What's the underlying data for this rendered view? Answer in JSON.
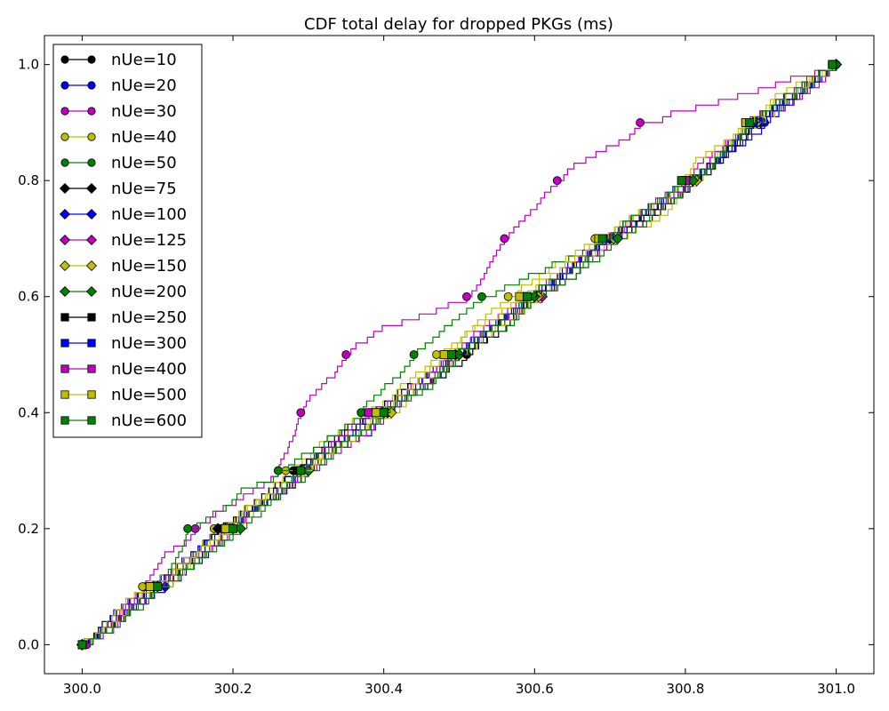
{
  "chart_data": {
    "type": "line",
    "title": "CDF total delay for dropped PKGs (ms)",
    "xlabel": "",
    "ylabel": "",
    "xlim": [
      299.95,
      301.05
    ],
    "ylim": [
      -0.05,
      1.05
    ],
    "xticks": [
      300.0,
      300.2,
      300.4,
      300.6,
      300.8,
      301.0
    ],
    "xtick_labels": [
      "300.0",
      "300.2",
      "300.4",
      "300.6",
      "300.8",
      "301.0"
    ],
    "yticks": [
      0.0,
      0.2,
      0.4,
      0.6,
      0.8,
      1.0
    ],
    "ytick_labels": [
      "0.0",
      "0.2",
      "0.4",
      "0.6",
      "0.8",
      "1.0"
    ],
    "grid": false,
    "legend_position": "top-left",
    "y_levels": [
      0.0,
      0.1,
      0.2,
      0.3,
      0.4,
      0.5,
      0.6,
      0.7,
      0.8,
      0.9,
      1.0
    ],
    "series": [
      {
        "name": "nUe=10",
        "color": "#000000",
        "marker": "circle",
        "x": [
          300.0,
          300.082,
          300.181,
          300.28,
          300.38,
          300.51,
          300.6,
          300.69,
          300.81,
          300.89,
          301.0
        ]
      },
      {
        "name": "nUe=20",
        "color": "#0000ff",
        "marker": "circle",
        "x": [
          300.0,
          300.085,
          300.185,
          300.285,
          300.385,
          300.495,
          300.59,
          300.7,
          300.81,
          300.905,
          301.0
        ]
      },
      {
        "name": "nUe=30",
        "color": "#bf00bf",
        "marker": "circle",
        "x": [
          300.006,
          300.08,
          300.15,
          300.26,
          300.29,
          300.35,
          300.51,
          300.56,
          300.63,
          300.74,
          300.995
        ]
      },
      {
        "name": "nUe=40",
        "color": "#bfbf00",
        "marker": "circle",
        "x": [
          300.0,
          300.08,
          300.175,
          300.27,
          300.37,
          300.47,
          300.565,
          300.68,
          300.8,
          300.88,
          300.995
        ]
      },
      {
        "name": "nUe=50",
        "color": "#008000",
        "marker": "circle",
        "x": [
          300.0,
          300.1,
          300.14,
          300.26,
          300.37,
          300.44,
          300.53,
          300.7,
          300.805,
          300.89,
          301.0
        ]
      },
      {
        "name": "nUe=75",
        "color": "#000000",
        "marker": "diamond",
        "x": [
          300.0,
          300.095,
          300.18,
          300.3,
          300.39,
          300.5,
          300.6,
          300.7,
          300.81,
          300.89,
          301.0
        ]
      },
      {
        "name": "nUe=100",
        "color": "#0000ff",
        "marker": "diamond",
        "x": [
          300.0,
          300.11,
          300.19,
          300.29,
          300.4,
          300.495,
          300.6,
          300.7,
          300.81,
          300.9,
          301.0
        ]
      },
      {
        "name": "nUe=125",
        "color": "#bf00bf",
        "marker": "diamond",
        "x": [
          300.0,
          300.1,
          300.2,
          300.3,
          300.405,
          300.495,
          300.61,
          300.705,
          300.81,
          300.895,
          301.0
        ]
      },
      {
        "name": "nUe=150",
        "color": "#bfbf00",
        "marker": "diamond",
        "x": [
          300.0,
          300.1,
          300.2,
          300.3,
          300.41,
          300.5,
          300.605,
          300.705,
          300.815,
          300.895,
          301.0
        ]
      },
      {
        "name": "nUe=200",
        "color": "#008000",
        "marker": "diamond",
        "x": [
          300.0,
          300.1,
          300.21,
          300.3,
          300.4,
          300.5,
          300.6,
          300.71,
          300.81,
          300.89,
          301.0
        ]
      },
      {
        "name": "nUe=250",
        "color": "#000000",
        "marker": "square",
        "x": [
          300.0,
          300.09,
          300.19,
          300.285,
          300.39,
          300.49,
          300.59,
          300.69,
          300.8,
          300.89,
          300.995
        ]
      },
      {
        "name": "nUe=300",
        "color": "#0000ff",
        "marker": "square",
        "x": [
          300.0,
          300.09,
          300.19,
          300.29,
          300.39,
          300.49,
          300.59,
          300.695,
          300.8,
          300.89,
          300.995
        ]
      },
      {
        "name": "nUe=400",
        "color": "#bf00bf",
        "marker": "square",
        "x": [
          300.0,
          300.09,
          300.19,
          300.29,
          300.38,
          300.485,
          300.585,
          300.69,
          300.8,
          300.88,
          300.995
        ]
      },
      {
        "name": "nUe=500",
        "color": "#bfbf00",
        "marker": "square",
        "x": [
          300.0,
          300.09,
          300.19,
          300.29,
          300.39,
          300.48,
          300.58,
          300.685,
          300.795,
          300.88,
          300.995
        ]
      },
      {
        "name": "nUe=600",
        "color": "#008000",
        "marker": "square",
        "x": [
          300.0,
          300.1,
          300.2,
          300.29,
          300.4,
          300.49,
          300.59,
          300.69,
          300.795,
          300.885,
          300.995
        ]
      }
    ]
  }
}
